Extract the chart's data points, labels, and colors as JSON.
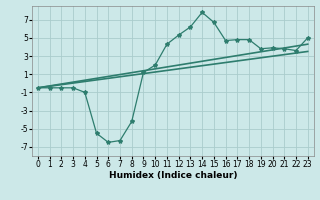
{
  "title": "",
  "xlabel": "Humidex (Indice chaleur)",
  "ylabel": "",
  "background_color": "#cce8e8",
  "grid_color": "#aacccc",
  "line_color": "#2e7d6e",
  "xlim": [
    -0.5,
    23.5
  ],
  "ylim": [
    -8,
    8.5
  ],
  "yticks": [
    -7,
    -5,
    -3,
    -1,
    1,
    3,
    5,
    7
  ],
  "xticks": [
    0,
    1,
    2,
    3,
    4,
    5,
    6,
    7,
    8,
    9,
    10,
    11,
    12,
    13,
    14,
    15,
    16,
    17,
    18,
    19,
    20,
    21,
    22,
    23
  ],
  "series1_x": [
    0,
    1,
    2,
    3,
    4,
    5,
    6,
    7,
    8,
    9,
    10,
    11,
    12,
    13,
    14,
    15,
    16,
    17,
    18,
    19,
    20,
    21,
    22,
    23
  ],
  "series1_y": [
    -0.5,
    -0.5,
    -0.5,
    -0.5,
    -1.0,
    -5.5,
    -6.5,
    -6.3,
    -4.2,
    1.2,
    2.0,
    4.3,
    5.3,
    6.2,
    7.8,
    6.7,
    4.7,
    4.8,
    4.8,
    3.8,
    3.9,
    3.8,
    3.6,
    5.0
  ],
  "series2_x": [
    0,
    23
  ],
  "series2_y": [
    -0.5,
    4.3
  ],
  "series3_x": [
    0,
    23
  ],
  "series3_y": [
    -0.5,
    3.5
  ],
  "xlabel_fontsize": 6.5,
  "tick_fontsize": 5.5,
  "linewidth": 1.0,
  "marker_size": 3.0
}
